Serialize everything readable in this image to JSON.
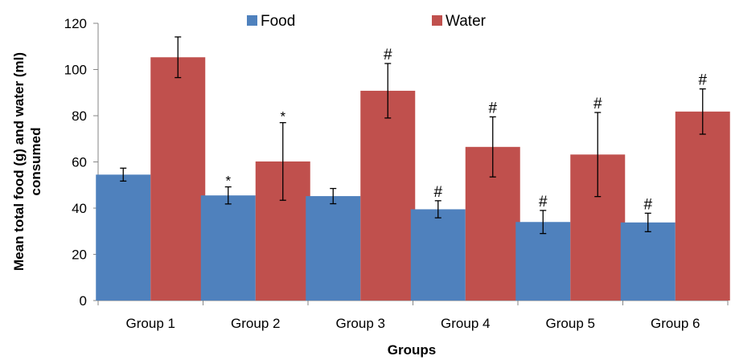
{
  "chart_data": {
    "type": "bar",
    "xlabel": "Groups",
    "ylabel_line1": "Mean total food (g) and water (ml)",
    "ylabel_line2": "consumed",
    "ylim": [
      0,
      120
    ],
    "yticks": [
      "0",
      "20",
      "40",
      "60",
      "80",
      "100",
      "120"
    ],
    "categories": [
      "Group 1",
      "Group 2",
      "Group 3",
      "Group 4",
      "Group 5",
      "Group 6"
    ],
    "legend_position": "top",
    "grid": false,
    "series": [
      {
        "name": "Food",
        "color": "#4f81bd",
        "values": [
          54.5,
          45.5,
          45.2,
          39.5,
          34.0,
          33.8
        ],
        "errors": [
          2.8,
          3.7,
          3.3,
          3.7,
          5.0,
          4.0
        ],
        "marks": [
          "",
          "*",
          "",
          "#",
          "#",
          "#"
        ]
      },
      {
        "name": "Water",
        "color": "#c0504d",
        "values": [
          105.3,
          60.2,
          90.8,
          66.5,
          63.2,
          81.8
        ],
        "errors": [
          8.8,
          16.8,
          11.8,
          13.0,
          18.2,
          9.8
        ],
        "marks": [
          "",
          "*",
          "#",
          "#",
          "#",
          "#"
        ]
      }
    ]
  }
}
